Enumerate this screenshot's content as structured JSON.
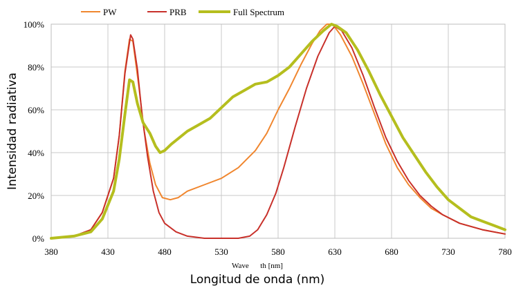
{
  "chart_data": {
    "type": "line",
    "xlabel": "Longitud de onda (nm)",
    "xlabel_underlay": "Wave      th [nm]",
    "ylabel": "Intensidad radiativa",
    "xlim": [
      380,
      780
    ],
    "ylim": [
      0,
      100
    ],
    "x_ticks": [
      "380",
      "430",
      "480",
      "530",
      "580",
      "630",
      "680",
      "730",
      "780"
    ],
    "y_ticks": [
      "0%",
      "20%",
      "40%",
      "60%",
      "80%",
      "100%"
    ],
    "grid": true,
    "legend_position": "top-left",
    "series": [
      {
        "name": "PW",
        "color": "#f0862e",
        "points": [
          [
            380,
            0
          ],
          [
            400,
            1
          ],
          [
            415,
            4
          ],
          [
            425,
            12
          ],
          [
            435,
            28
          ],
          [
            440,
            48
          ],
          [
            445,
            78
          ],
          [
            449,
            93
          ],
          [
            452,
            92
          ],
          [
            457,
            72
          ],
          [
            462,
            50
          ],
          [
            467,
            35
          ],
          [
            472,
            25
          ],
          [
            478,
            19
          ],
          [
            485,
            18
          ],
          [
            492,
            19
          ],
          [
            500,
            22
          ],
          [
            515,
            25
          ],
          [
            530,
            28
          ],
          [
            545,
            33
          ],
          [
            560,
            41
          ],
          [
            570,
            49
          ],
          [
            580,
            60
          ],
          [
            590,
            70
          ],
          [
            600,
            81
          ],
          [
            610,
            91
          ],
          [
            617,
            97
          ],
          [
            623,
            100
          ],
          [
            628,
            100
          ],
          [
            635,
            95
          ],
          [
            645,
            85
          ],
          [
            655,
            72
          ],
          [
            665,
            58
          ],
          [
            675,
            44
          ],
          [
            685,
            33
          ],
          [
            695,
            25
          ],
          [
            705,
            19
          ],
          [
            715,
            14
          ],
          [
            725,
            11
          ],
          [
            740,
            7
          ],
          [
            760,
            4
          ],
          [
            780,
            2
          ]
        ]
      },
      {
        "name": "PRB",
        "color": "#c8302a",
        "points": [
          [
            380,
            0
          ],
          [
            400,
            1
          ],
          [
            415,
            4
          ],
          [
            425,
            12
          ],
          [
            435,
            28
          ],
          [
            440,
            48
          ],
          [
            445,
            77
          ],
          [
            450,
            95
          ],
          [
            452,
            93
          ],
          [
            456,
            79
          ],
          [
            460,
            58
          ],
          [
            465,
            38
          ],
          [
            470,
            22
          ],
          [
            475,
            12
          ],
          [
            480,
            7
          ],
          [
            490,
            3
          ],
          [
            500,
            1
          ],
          [
            515,
            0
          ],
          [
            530,
            0
          ],
          [
            545,
            0
          ],
          [
            555,
            1
          ],
          [
            562,
            4
          ],
          [
            570,
            11
          ],
          [
            578,
            21
          ],
          [
            585,
            33
          ],
          [
            595,
            52
          ],
          [
            605,
            70
          ],
          [
            615,
            85
          ],
          [
            625,
            96
          ],
          [
            630,
            99
          ],
          [
            636,
            97
          ],
          [
            645,
            89
          ],
          [
            655,
            76
          ],
          [
            665,
            61
          ],
          [
            675,
            47
          ],
          [
            685,
            36
          ],
          [
            695,
            27
          ],
          [
            705,
            20
          ],
          [
            715,
            15
          ],
          [
            725,
            11
          ],
          [
            740,
            7
          ],
          [
            760,
            4
          ],
          [
            780,
            2
          ]
        ]
      },
      {
        "name": "Full Spectrum",
        "color": "#b5be1e",
        "points": [
          [
            380,
            0
          ],
          [
            400,
            1
          ],
          [
            415,
            3
          ],
          [
            425,
            9
          ],
          [
            435,
            22
          ],
          [
            440,
            37
          ],
          [
            445,
            58
          ],
          [
            449,
            74
          ],
          [
            452,
            73
          ],
          [
            456,
            63
          ],
          [
            461,
            54
          ],
          [
            467,
            49
          ],
          [
            472,
            43
          ],
          [
            476,
            40
          ],
          [
            480,
            41
          ],
          [
            486,
            44
          ],
          [
            493,
            47
          ],
          [
            500,
            50
          ],
          [
            510,
            53
          ],
          [
            520,
            56
          ],
          [
            530,
            61
          ],
          [
            540,
            66
          ],
          [
            550,
            69
          ],
          [
            560,
            72
          ],
          [
            570,
            73
          ],
          [
            580,
            76
          ],
          [
            590,
            80
          ],
          [
            600,
            86
          ],
          [
            610,
            92
          ],
          [
            620,
            97
          ],
          [
            627,
            100
          ],
          [
            632,
            99
          ],
          [
            640,
            96
          ],
          [
            650,
            88
          ],
          [
            660,
            78
          ],
          [
            670,
            67
          ],
          [
            680,
            57
          ],
          [
            690,
            47
          ],
          [
            700,
            39
          ],
          [
            710,
            31
          ],
          [
            720,
            24
          ],
          [
            730,
            18
          ],
          [
            740,
            14
          ],
          [
            750,
            10
          ],
          [
            760,
            8
          ],
          [
            770,
            6
          ],
          [
            780,
            4
          ]
        ]
      }
    ]
  }
}
